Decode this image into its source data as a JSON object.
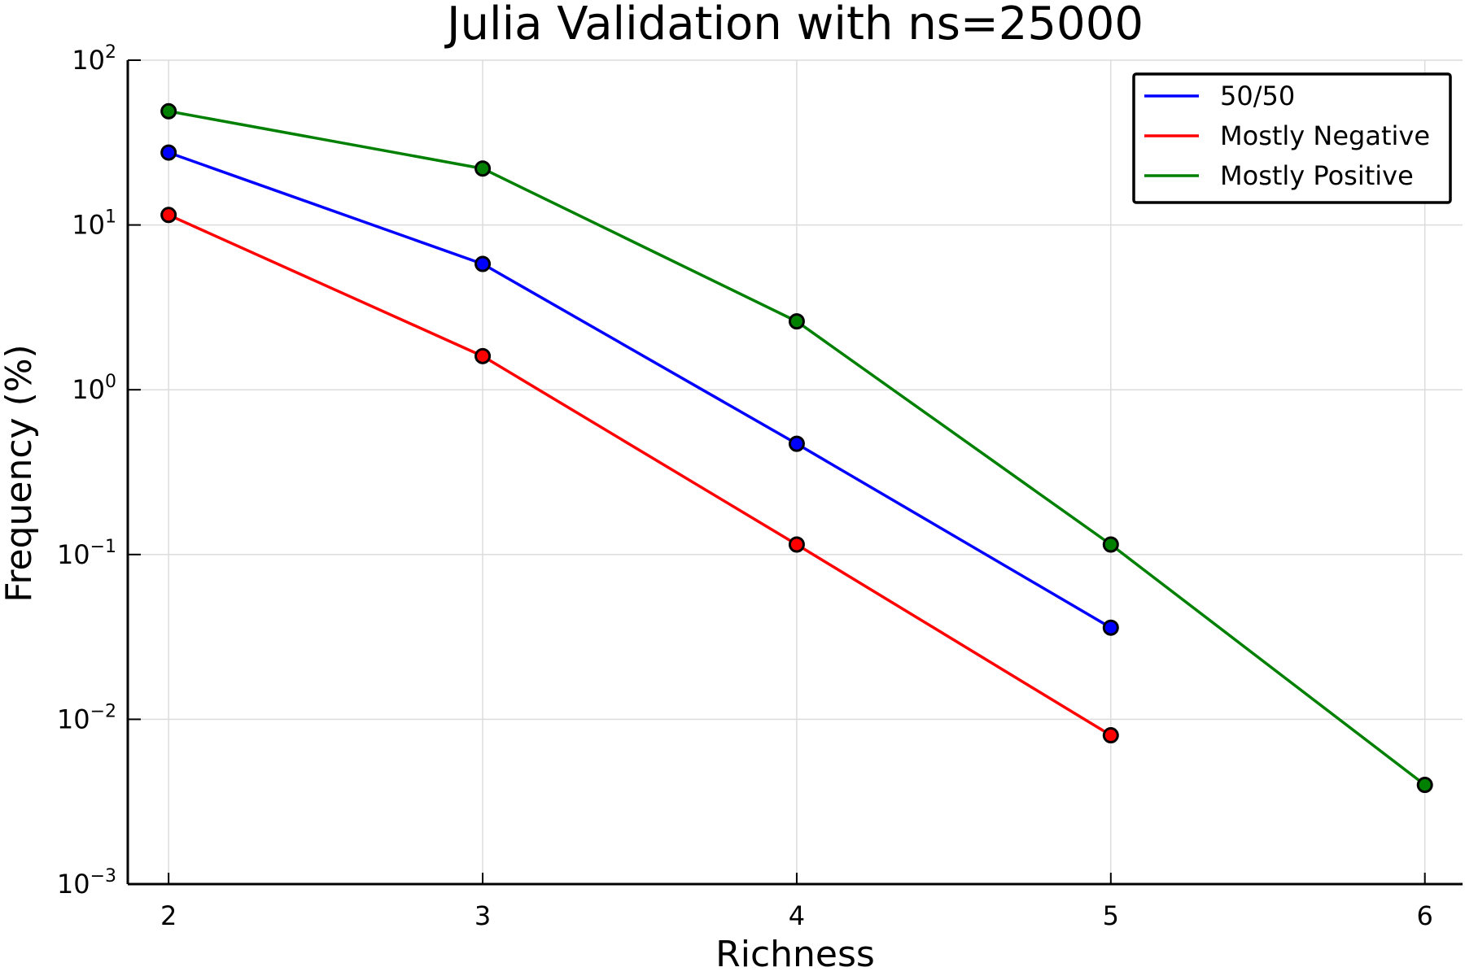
{
  "chart_data": {
    "type": "line",
    "title": "Julia Validation with ns=25000",
    "xlabel": "Richness",
    "ylabel": "Frequency (%)",
    "yscale": "log",
    "xlim": [
      1.87,
      6.12
    ],
    "ylim": [
      0.001,
      100
    ],
    "x_ticks": [
      2,
      3,
      4,
      5,
      6
    ],
    "y_ticks": [
      {
        "value": 100,
        "base": "10",
        "exp": "2"
      },
      {
        "value": 10,
        "base": "10",
        "exp": "1"
      },
      {
        "value": 1,
        "base": "10",
        "exp": "0"
      },
      {
        "value": 0.1,
        "base": "10",
        "exp": "−1"
      },
      {
        "value": 0.01,
        "base": "10",
        "exp": "−2"
      },
      {
        "value": 0.001,
        "base": "10",
        "exp": "−3"
      }
    ],
    "grid": true,
    "legend_position": "top-right",
    "series": [
      {
        "name": "50/50",
        "color": "#0000ff",
        "x": [
          2,
          3,
          4,
          5
        ],
        "y": [
          27.5,
          5.8,
          0.47,
          0.036
        ]
      },
      {
        "name": "Mostly Negative",
        "color": "#ff0000",
        "x": [
          2,
          3,
          4,
          5
        ],
        "y": [
          11.5,
          1.6,
          0.115,
          0.008
        ]
      },
      {
        "name": "Mostly Positive",
        "color": "#008000",
        "x": [
          2,
          3,
          4,
          5,
          6
        ],
        "y": [
          49,
          22,
          2.6,
          0.115,
          0.004
        ]
      }
    ]
  }
}
